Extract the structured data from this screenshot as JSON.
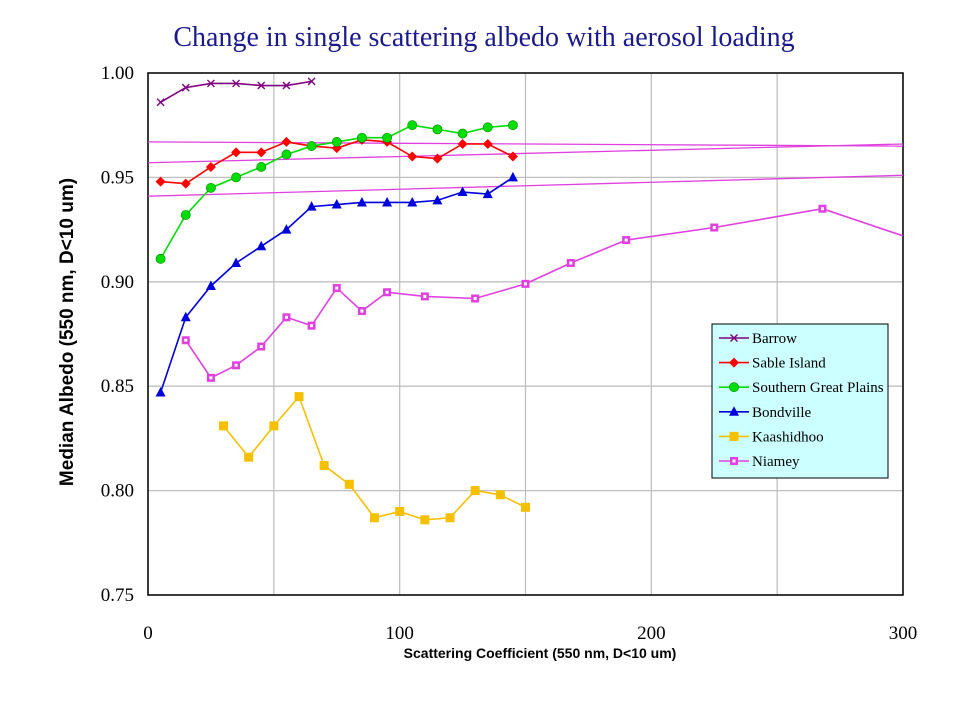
{
  "chart_data": {
    "type": "scatter",
    "title": "Change in single scattering albedo with aerosol loading",
    "xlabel": "Scattering Coefficient (550 nm, D<10 um)",
    "ylabel": "Median Albedo (550 nm, D<10 um)",
    "xlim": [
      0,
      300
    ],
    "ylim": [
      0.75,
      1.0
    ],
    "xticks": [
      0,
      100,
      200,
      300
    ],
    "xtick_labels": [
      "0",
      "100",
      "200",
      "300"
    ],
    "yticks": [
      0.75,
      0.8,
      0.85,
      0.9,
      0.95,
      1.0
    ],
    "ytick_labels": [
      "0.75",
      "0.80",
      "0.85",
      "0.90",
      "0.95",
      "1.00"
    ],
    "grid": true,
    "legend_position": "right",
    "series": [
      {
        "name": "Barrow",
        "color": "#800080",
        "marker": "x",
        "x": [
          5,
          15,
          25,
          35,
          45,
          55,
          65
        ],
        "y": [
          0.986,
          0.993,
          0.995,
          0.995,
          0.994,
          0.994,
          0.996
        ]
      },
      {
        "name": "Sable Island",
        "color": "#ff0000",
        "marker": "diamond",
        "x": [
          5,
          15,
          25,
          35,
          45,
          55,
          65,
          75,
          85,
          95,
          105,
          115,
          125,
          135,
          145
        ],
        "y": [
          0.948,
          0.947,
          0.955,
          0.962,
          0.962,
          0.967,
          0.965,
          0.964,
          0.968,
          0.967,
          0.96,
          0.959,
          0.966,
          0.966,
          0.96
        ]
      },
      {
        "name": "Southern Great Plains",
        "color": "#00dd00",
        "marker": "circle",
        "x": [
          5,
          15,
          25,
          35,
          45,
          55,
          65,
          75,
          85,
          95,
          105,
          115,
          125,
          135,
          145
        ],
        "y": [
          0.911,
          0.932,
          0.945,
          0.95,
          0.955,
          0.961,
          0.965,
          0.967,
          0.969,
          0.969,
          0.975,
          0.973,
          0.971,
          0.974,
          0.975
        ]
      },
      {
        "name": "Bondville",
        "color": "#0000dd",
        "marker": "triangle",
        "x": [
          5,
          15,
          25,
          35,
          45,
          55,
          65,
          75,
          85,
          95,
          105,
          115,
          125,
          135,
          145
        ],
        "y": [
          0.847,
          0.883,
          0.898,
          0.909,
          0.917,
          0.925,
          0.936,
          0.937,
          0.938,
          0.938,
          0.938,
          0.939,
          0.943,
          0.942,
          0.95
        ]
      },
      {
        "name": "Kaashidhoo",
        "color": "#f5c000",
        "marker": "square",
        "x": [
          30,
          40,
          50,
          60,
          70,
          80,
          90,
          100,
          110,
          120,
          130,
          140,
          150
        ],
        "y": [
          0.831,
          0.816,
          0.831,
          0.845,
          0.812,
          0.803,
          0.787,
          0.79,
          0.786,
          0.787,
          0.8,
          0.798,
          0.792
        ]
      },
      {
        "name": "Niamey",
        "color": "#e040e0",
        "marker": "square-dot",
        "x": [
          15,
          25,
          35,
          45,
          55,
          65,
          75,
          85,
          95,
          110,
          130,
          150,
          168,
          190,
          225,
          268,
          300
        ],
        "y": [
          0.872,
          0.854,
          0.86,
          0.869,
          0.883,
          0.879,
          0.897,
          0.886,
          0.895,
          0.893,
          0.892,
          0.899,
          0.909,
          0.92,
          0.926,
          0.935,
          0.922
        ],
        "markers_hidden_after_index": 15
      }
    ],
    "reference_lines": [
      {
        "color": "#e040e0",
        "x": [
          0,
          300
        ],
        "y": [
          0.967,
          0.965
        ]
      },
      {
        "color": "#e040e0",
        "x": [
          0,
          300
        ],
        "y": [
          0.957,
          0.966
        ]
      },
      {
        "color": "#e040e0",
        "x": [
          0,
          300
        ],
        "y": [
          0.941,
          0.951
        ]
      }
    ]
  }
}
